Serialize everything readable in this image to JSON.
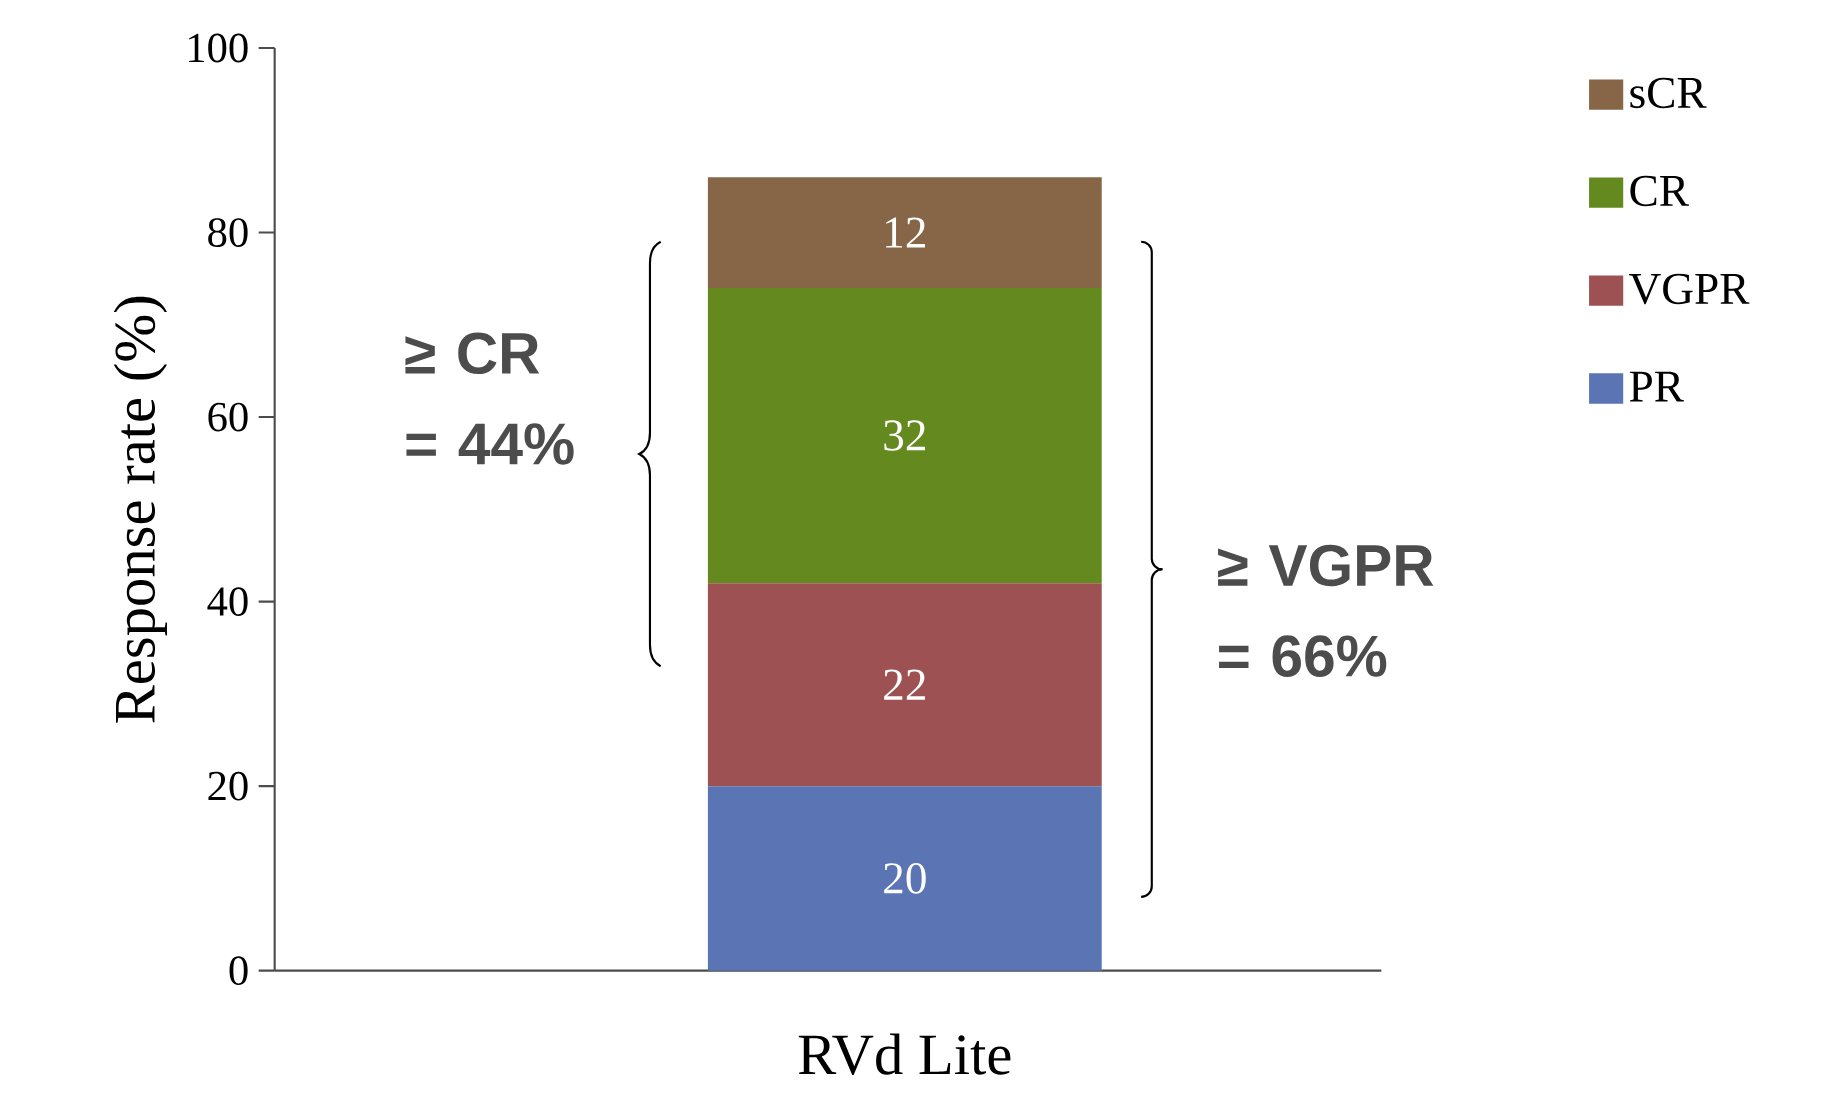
{
  "chart_data": {
    "type": "bar",
    "stacked": true,
    "categories": [
      "RVd Lite"
    ],
    "ylabel": "Response rate (%)",
    "series": [
      {
        "name": "PR",
        "color": "#5b74b4",
        "values": [
          20
        ],
        "value_labels": [
          "20"
        ]
      },
      {
        "name": "VGPR",
        "color": "#9e5152",
        "values": [
          22
        ],
        "value_labels": [
          "22"
        ]
      },
      {
        "name": "CR",
        "color": "#648a1f",
        "values": [
          32
        ],
        "value_labels": [
          "32"
        ]
      },
      {
        "name": "sCR",
        "color": "#876648",
        "values": [
          12
        ],
        "value_labels": [
          "12"
        ]
      }
    ],
    "ylim": [
      0,
      100
    ],
    "yticks": [
      0,
      20,
      40,
      60,
      80,
      100
    ],
    "legend": "right",
    "grid": false,
    "annotations": [
      "≥ CR = 44%",
      "≥ VGPR = 66%"
    ]
  }
}
